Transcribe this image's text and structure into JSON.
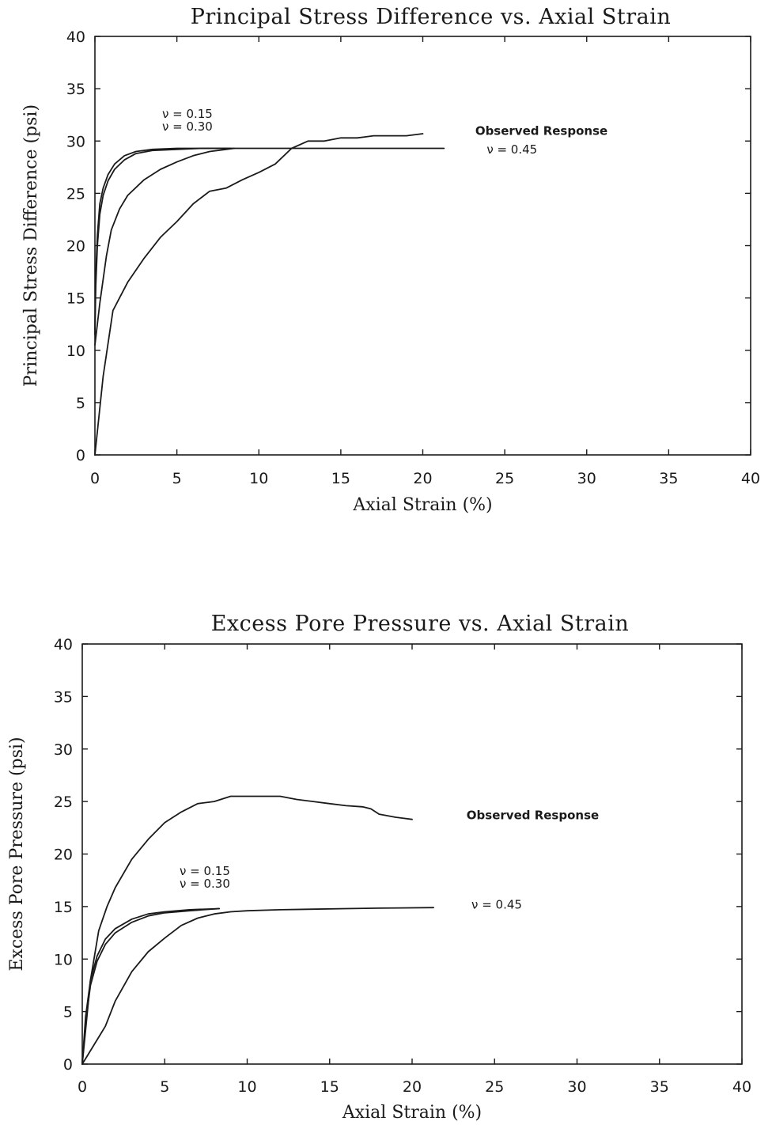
{
  "chart_data": [
    {
      "type": "line",
      "title": "Principal Stress Difference vs. Axial Strain",
      "xlabel": "Axial Strain (%)",
      "ylabel": "Principal Stress Difference (psi)",
      "xlim": [
        0,
        40
      ],
      "ylim": [
        0,
        40
      ],
      "x_ticks": [
        0,
        5,
        10,
        15,
        20,
        25,
        30,
        35,
        40
      ],
      "y_ticks": [
        0,
        5,
        10,
        15,
        20,
        25,
        30,
        35,
        40
      ],
      "grid": false,
      "annotations": [
        {
          "text": "ν = 0.15",
          "x": 4.1,
          "y": 32.2,
          "style": "normal"
        },
        {
          "text": "ν = 0.30",
          "x": 4.1,
          "y": 31.0,
          "style": "normal"
        },
        {
          "text": "Observed Response",
          "x": 23.2,
          "y": 30.6,
          "style": "bold"
        },
        {
          "text": "ν = 0.45",
          "x": 23.9,
          "y": 28.8,
          "style": "normal"
        }
      ],
      "series": [
        {
          "x": [
            0,
            0.05,
            0.15,
            0.3,
            0.5,
            0.8,
            1.2,
            1.8,
            2.5,
            3.5,
            5,
            6.5,
            8.3
          ],
          "y": [
            12,
            17,
            21,
            24,
            25.5,
            26.8,
            27.8,
            28.6,
            29.0,
            29.2,
            29.3,
            29.3,
            29.3
          ]
        },
        {
          "x": [
            0,
            0.05,
            0.15,
            0.3,
            0.5,
            0.8,
            1.2,
            1.8,
            2.5,
            3.5,
            5,
            6.5,
            8.3,
            12,
            16,
            21.3
          ],
          "y": [
            11.5,
            16,
            20,
            23,
            24.8,
            26.2,
            27.3,
            28.2,
            28.8,
            29.1,
            29.2,
            29.3,
            29.3,
            29.3,
            29.3,
            29.3
          ]
        },
        {
          "x": [
            0,
            0.3,
            0.7,
            1.0,
            1.5,
            2.0,
            3.0,
            4.0,
            5.0,
            6.0,
            7.0,
            8.0,
            8.5
          ],
          "y": [
            10.5,
            14.5,
            19,
            21.5,
            23.5,
            24.8,
            26.3,
            27.3,
            28.0,
            28.6,
            29.0,
            29.2,
            29.3
          ]
        },
        {
          "x": [
            0,
            0.5,
            1.1,
            1.5,
            2.0,
            3.0,
            4.0,
            5.0,
            6.0,
            7.0,
            8.0,
            9.0,
            10.0,
            11.0,
            12.0,
            13.0,
            14.0,
            15.0,
            16.0,
            16.5,
            17.0,
            18.0,
            19.0,
            20.0
          ],
          "y": [
            0,
            7.5,
            13.8,
            15.0,
            16.5,
            18.8,
            20.8,
            22.3,
            24.0,
            25.2,
            25.5,
            26.3,
            27.0,
            27.8,
            29.3,
            30.0,
            30.0,
            30.3,
            30.3,
            30.4,
            30.5,
            30.5,
            30.5,
            30.7
          ]
        }
      ]
    },
    {
      "type": "line",
      "title": "Excess Pore Pressure vs. Axial Strain",
      "xlabel": "Axial Strain (%)",
      "ylabel": "Excess Pore Pressure (psi)",
      "xlim": [
        0,
        40
      ],
      "ylim": [
        0,
        40
      ],
      "x_ticks": [
        0,
        5,
        10,
        15,
        20,
        25,
        30,
        35,
        40
      ],
      "y_ticks": [
        0,
        5,
        10,
        15,
        20,
        25,
        30,
        35,
        40
      ],
      "grid": false,
      "annotations": [
        {
          "text": "Observed Response",
          "x": 23.3,
          "y": 23.3,
          "style": "bold"
        },
        {
          "text": "ν = 0.15",
          "x": 5.9,
          "y": 18.0,
          "style": "normal"
        },
        {
          "text": "ν = 0.30",
          "x": 5.9,
          "y": 16.8,
          "style": "normal"
        },
        {
          "text": "ν = 0.45",
          "x": 23.6,
          "y": 14.8,
          "style": "normal"
        }
      ],
      "series": [
        {
          "x": [
            0,
            0.2,
            0.5,
            0.9,
            1.4,
            2.0,
            3.0,
            4.0,
            5.0,
            6.5,
            8.3
          ],
          "y": [
            0,
            4.5,
            8.0,
            10.3,
            11.9,
            12.9,
            13.8,
            14.3,
            14.5,
            14.7,
            14.8
          ]
        },
        {
          "x": [
            0,
            0.2,
            0.5,
            0.9,
            1.4,
            2.0,
            3.0,
            4.0,
            5.0,
            6.5,
            8.3
          ],
          "y": [
            0,
            4.0,
            7.5,
            9.8,
            11.4,
            12.5,
            13.5,
            14.1,
            14.4,
            14.6,
            14.8
          ]
        },
        {
          "x": [
            0,
            1.4,
            2.0,
            3.0,
            4.0,
            5.0,
            6.0,
            7.0,
            8.0,
            9.0,
            10.0,
            12.0,
            14.0,
            16.0,
            18.0,
            21.3
          ],
          "y": [
            0,
            3.6,
            6.0,
            8.8,
            10.7,
            12.0,
            13.2,
            13.9,
            14.3,
            14.5,
            14.6,
            14.7,
            14.75,
            14.8,
            14.85,
            14.9
          ]
        },
        {
          "x": [
            0,
            0.5,
            1.0,
            1.5,
            2.0,
            3.0,
            4.0,
            5.0,
            6.0,
            7.0,
            8.0,
            9.0,
            10.0,
            11.0,
            12.0,
            13.0,
            14.0,
            15.0,
            16.0,
            17.0,
            17.5,
            18.0,
            19.0,
            20.0
          ],
          "y": [
            0,
            8.0,
            12.7,
            15.0,
            16.8,
            19.5,
            21.4,
            23.0,
            24.0,
            24.8,
            25.0,
            25.5,
            25.5,
            25.5,
            25.5,
            25.2,
            25.0,
            24.8,
            24.6,
            24.5,
            24.3,
            23.8,
            23.5,
            23.3
          ]
        }
      ]
    }
  ]
}
